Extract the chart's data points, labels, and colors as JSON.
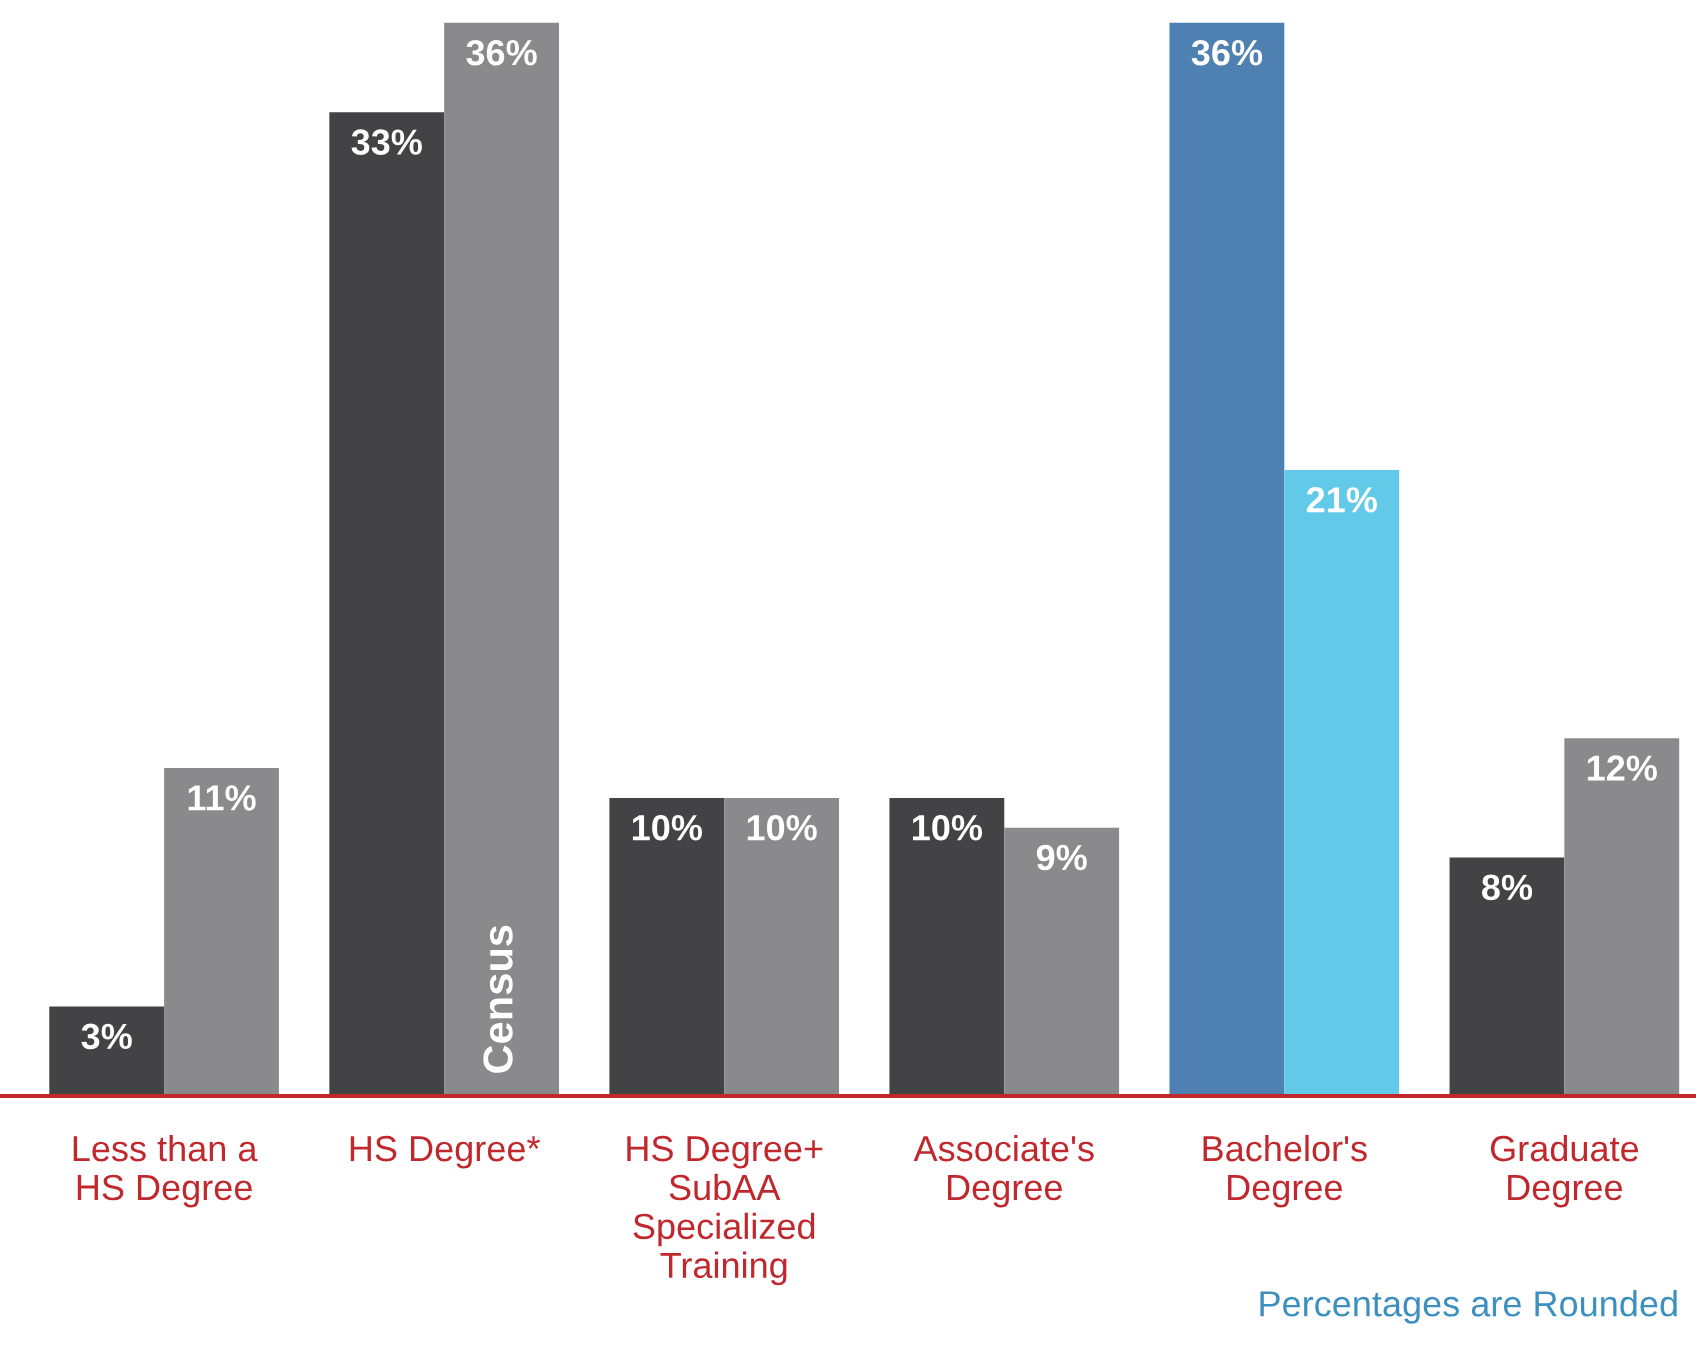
{
  "chart_data": {
    "type": "bar",
    "categories": [
      "Less than a\nHS Degree",
      "HS Degree*",
      "HS Degree+\nSubAA\nSpecialized\nTraining",
      "Associate's\nDegree",
      "Bachelor's\nDegree",
      "Graduate\nDegree"
    ],
    "series": [
      {
        "colors": [
          "#434345",
          "#434345",
          "#434345",
          "#434345",
          "#4e80b2",
          "#434345"
        ],
        "values": [
          3,
          33,
          10,
          10,
          36,
          8
        ],
        "value_labels": [
          "3%",
          "33%",
          "10%",
          "10%",
          "36%",
          "8%"
        ]
      },
      {
        "name": "Census",
        "colors": [
          "#8a8a8c",
          "#8a8a8c",
          "#8a8a8c",
          "#8a8a8c",
          "#62c9e9",
          "#8a8a8c"
        ],
        "values": [
          11,
          36,
          10,
          9,
          21,
          12
        ],
        "value_labels": [
          "11%",
          "36%",
          "10%",
          "9%",
          "21%",
          "12%"
        ]
      }
    ],
    "annotations": [
      "Percentages are Rounded"
    ]
  }
}
